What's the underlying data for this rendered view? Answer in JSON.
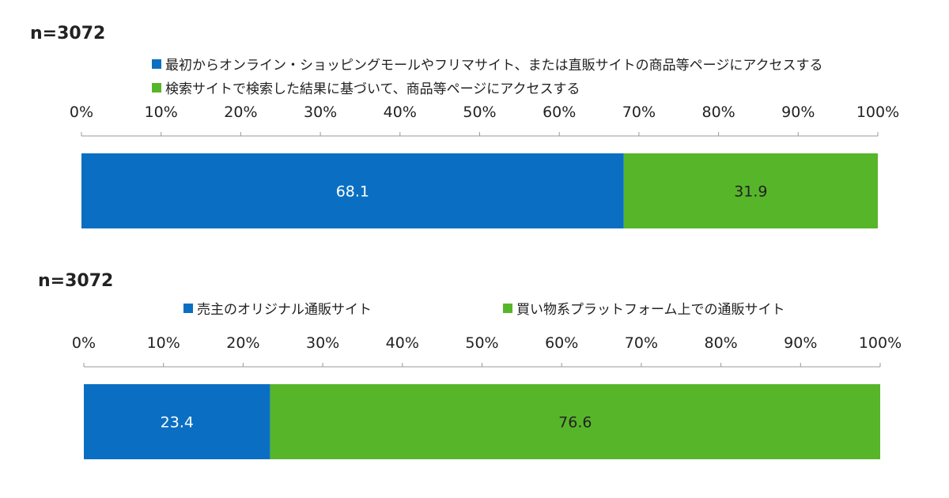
{
  "chart_data": [
    {
      "type": "bar",
      "orientation": "horizontal",
      "stacked": true,
      "n_label": "n=3072",
      "x_ticks": [
        "0%",
        "10%",
        "20%",
        "30%",
        "40%",
        "50%",
        "60%",
        "70%",
        "80%",
        "90%",
        "100%"
      ],
      "xlim": [
        0,
        100
      ],
      "grid": false,
      "legend_position": "top",
      "series": [
        {
          "name": "最初からオンライン・ショッピングモールやフリマサイト、または直販サイトの商品等ページにアクセスする",
          "values": [
            68.1
          ],
          "color": "#0a6fc2",
          "label_color": "#ffffff"
        },
        {
          "name": "検索サイトで検索した結果に基づいて、商品等ページにアクセスする",
          "values": [
            31.9
          ],
          "color": "#57b52a",
          "label_color": "#222222"
        }
      ],
      "data_labels": [
        "68.1",
        "31.9"
      ]
    },
    {
      "type": "bar",
      "orientation": "horizontal",
      "stacked": true,
      "n_label": "n=3072",
      "x_ticks": [
        "0%",
        "10%",
        "20%",
        "30%",
        "40%",
        "50%",
        "60%",
        "70%",
        "80%",
        "90%",
        "100%"
      ],
      "xlim": [
        0,
        100
      ],
      "grid": false,
      "legend_position": "top",
      "series": [
        {
          "name": "売主のオリジナル通販サイト",
          "values": [
            23.4
          ],
          "color": "#0a6fc2",
          "label_color": "#ffffff"
        },
        {
          "name": "買い物系プラットフォーム上での通販サイト",
          "values": [
            76.6
          ],
          "color": "#57b52a",
          "label_color": "#222222"
        }
      ],
      "data_labels": [
        "23.4",
        "76.6"
      ]
    }
  ]
}
